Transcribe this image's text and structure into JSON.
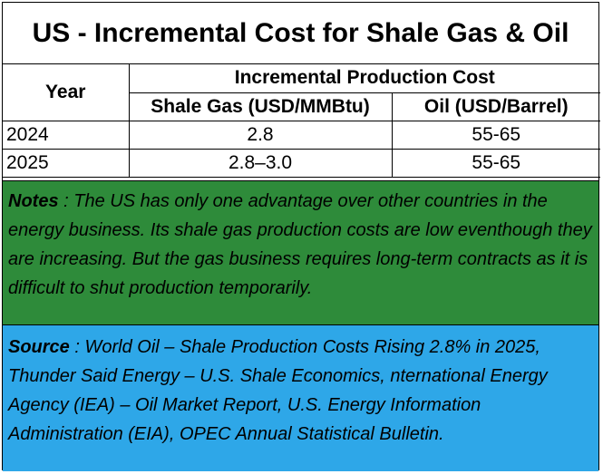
{
  "title": "US - Incremental Cost for Shale Gas & Oil",
  "table": {
    "year_header": "Year",
    "group_header": "Incremental Production Cost",
    "col_gas": "Shale Gas (USD/MMBtu)",
    "col_oil": "Oil (USD/Barrel)",
    "rows": [
      {
        "year": "2024",
        "gas": "2.8",
        "oil": "55-65"
      },
      {
        "year": "2025",
        "gas": "2.8–3.0",
        "oil": "55-65"
      }
    ]
  },
  "notes": {
    "label": "Notes",
    "text": " : The US has only one advantage over other countries in the energy business. Its shale gas production costs are low eventhough they are increasing. But the gas business requires long-term contracts as it is difficult to shut production temporarily."
  },
  "source": {
    "label": "Source",
    "text": " : World Oil – Shale Production Costs Rising 2.8% in 2025, Thunder Said Energy – U.S. Shale Economics, nternational Energy Agency (IEA) – Oil Market Report, U.S. Energy Information Administration (EIA), OPEC Annual Statistical Bulletin."
  },
  "colors": {
    "notes_background": "#2e8b3a",
    "source_background": "#2ea7e8"
  }
}
